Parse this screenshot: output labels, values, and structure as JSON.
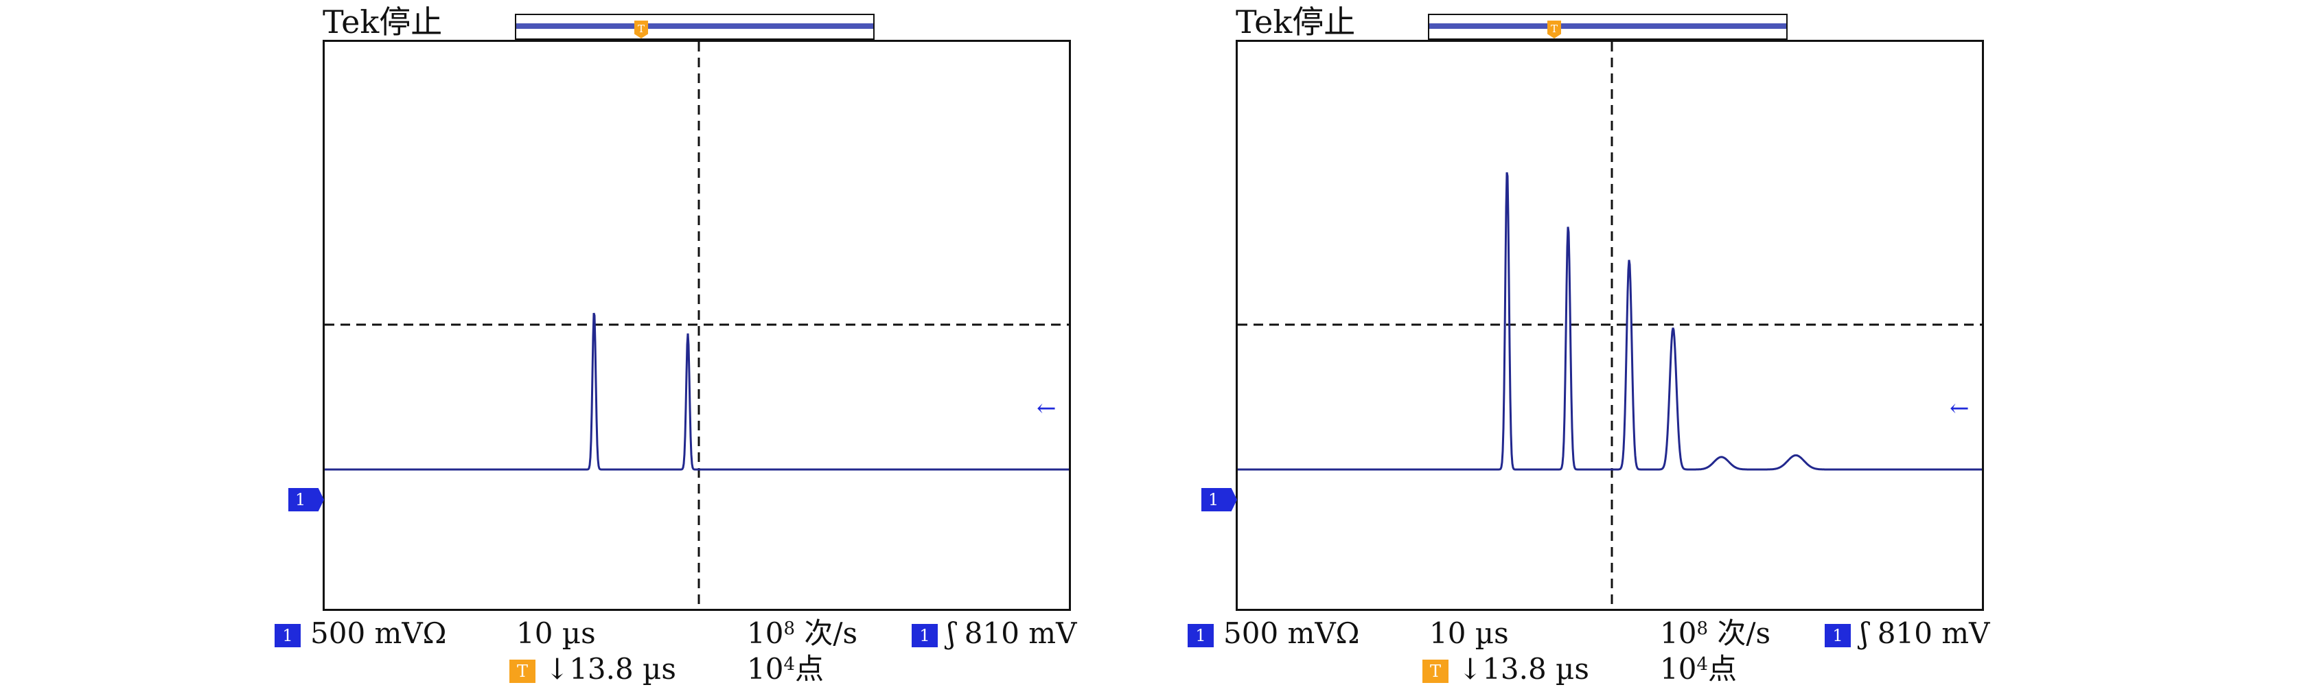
{
  "colors": {
    "channel": "#1f2adb",
    "trigger": "#f7a21b",
    "trace": "#22288e",
    "frame": "#111111"
  },
  "scopes": [
    {
      "title": "Tek停止",
      "record_bar_marker": "T",
      "trigger_marker": "T",
      "channel_marker": "1",
      "ref_arrow": "←",
      "readouts": {
        "ch_badge": "1",
        "volts_div": "500 mVΩ",
        "time_div": "10 µs",
        "rate_base": "10",
        "rate_exp": "8",
        "rate_unit": " 次/s",
        "trig_badge": "1",
        "trig_level": "ʃ 810 mV",
        "pos_badge": "T",
        "trig_pos": "↓13.8 µs",
        "pts_base": "10",
        "pts_exp": "4",
        "pts_unit": "点"
      },
      "trace": {
        "baseline": 0,
        "peaks": [
          {
            "t": -13.8,
            "amp": 0.28
          },
          {
            "t": -1.2,
            "amp": 0.24
          }
        ]
      }
    },
    {
      "title": "Tek停止",
      "record_bar_marker": "T",
      "trigger_marker": "T",
      "channel_marker": "1",
      "ref_arrow": "←",
      "readouts": {
        "ch_badge": "1",
        "volts_div": "500 mVΩ",
        "time_div": "10 µs",
        "rate_base": "10",
        "rate_exp": "8",
        "rate_unit": " 次/s",
        "trig_badge": "1",
        "trig_level": "ʃ 810 mV",
        "pos_badge": "T",
        "trig_pos": "↓13.8 µs",
        "pts_base": "10",
        "pts_exp": "4",
        "pts_unit": "点"
      },
      "trace": {
        "baseline": 0,
        "peaks": [
          {
            "t": -13.8,
            "amp": 0.53,
            "w": 0.25
          },
          {
            "t": -5.6,
            "amp": 0.43,
            "w": 0.28
          },
          {
            "t": 2.6,
            "amp": 0.37,
            "w": 0.35
          },
          {
            "t": 8.5,
            "amp": 0.25,
            "w": 0.45
          },
          {
            "t": 15.0,
            "amp": 0.022,
            "w": 1.0
          },
          {
            "t": 25.0,
            "amp": 0.025,
            "w": 1.1
          }
        ]
      }
    }
  ]
}
